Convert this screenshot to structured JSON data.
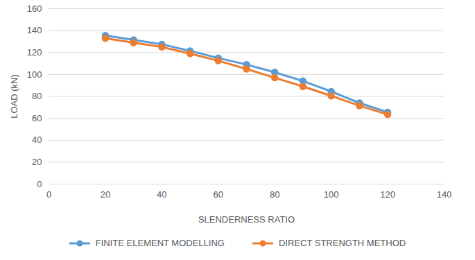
{
  "chart_data": {
    "type": "line",
    "x_label": "SLENDERNESS RATIO",
    "y_label": "LOAD (kN)",
    "x": [
      20,
      30,
      40,
      50,
      60,
      70,
      80,
      90,
      100,
      110,
      120
    ],
    "series": [
      {
        "name": "FINITE ELEMENT MODELLING",
        "color": "#5b9bd5",
        "marker": "circle",
        "line_style": "solid",
        "values": [
          135.5,
          131.5,
          127.5,
          121.5,
          115,
          109,
          102,
          94,
          84.5,
          74,
          65.5
        ]
      },
      {
        "name": "DIRECT STRENGTH METHOD",
        "color": "#ed7d31",
        "marker": "circle",
        "line_style": "solid",
        "values": [
          133,
          129,
          125,
          119,
          112.5,
          105,
          97,
          89,
          80.5,
          71.5,
          63.5
        ]
      }
    ],
    "xlim": [
      0,
      140
    ],
    "xticks": [
      0,
      20,
      40,
      60,
      80,
      100,
      120,
      140
    ],
    "ylim": [
      0,
      160
    ],
    "yticks": [
      0,
      20,
      40,
      60,
      80,
      100,
      120,
      140,
      160
    ],
    "grid": true,
    "legend": "bottom"
  }
}
